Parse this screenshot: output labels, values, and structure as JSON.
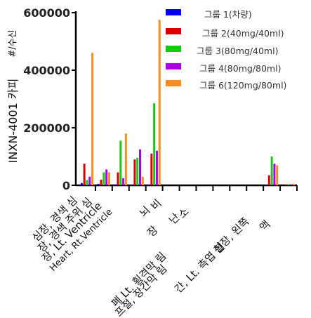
{
  "chart_data": {
    "type": "bar",
    "ylabel": "INXN-4001 카피",
    "yunit": "#/수신",
    "ylim": [
      0,
      600000
    ],
    "yticks": [
      "0",
      "200000",
      "400000",
      "600000"
    ],
    "ytick_values": [
      0,
      200000,
      400000,
      600000
    ],
    "categories": [
      "심장, 경색 심",
      "장, 경색 주위 심",
      "장, Lt. Ventricle",
      "Heart, Rt.Ventricle",
      "뇌",
      "비",
      "장",
      "난소",
      "폐 Lt. 횡격막 림",
      "프절, 장간막 림",
      "간, Lt. 측엽 혈",
      "신장, 왼쪽",
      "액"
    ],
    "category_labels": [
      "심장, 경색 심",
      "장, 경색 주위 심",
      "장, Lt. Ventricle",
      "Heart, Rt.Ventricle",
      "뇌",
      "비",
      "장",
      "난",
      "소",
      "폐 Lt. 횡격막 림",
      "프절, 장간막 림",
      "간, Lt. 측엽 혈",
      "신장, 왼쪽",
      "액"
    ],
    "series": [
      {
        "name": "그룹 1(차량)",
        "color": "#0000ee",
        "values": [
          8000,
          5000,
          3000,
          2000,
          2000,
          0,
          0,
          0,
          0,
          0,
          0,
          2000,
          0
        ]
      },
      {
        "name": "그룹 2(40mg/40ml)",
        "color": "#dd0000",
        "values": [
          75000,
          20000,
          45000,
          90000,
          110000,
          0,
          0,
          0,
          0,
          0,
          0,
          35000,
          3000
        ]
      },
      {
        "name": "그룹 3(80mg/40ml)",
        "color": "#11cc11",
        "values": [
          18000,
          45000,
          155000,
          95000,
          285000,
          0,
          0,
          0,
          0,
          0,
          0,
          100000,
          4000
        ]
      },
      {
        "name": "그룹 4(80mg/80ml)",
        "color": "#aa00ee",
        "values": [
          30000,
          55000,
          25000,
          125000,
          120000,
          0,
          0,
          0,
          0,
          0,
          0,
          75000,
          3000
        ]
      },
      {
        "name": "그룹 6(120mg/80ml)",
        "color": "#ff8c1a",
        "values": [
          460000,
          45000,
          180000,
          30000,
          575000,
          0,
          0,
          0,
          0,
          0,
          0,
          70000,
          5000
        ]
      }
    ],
    "grid": false,
    "legend_position": "top-right"
  }
}
